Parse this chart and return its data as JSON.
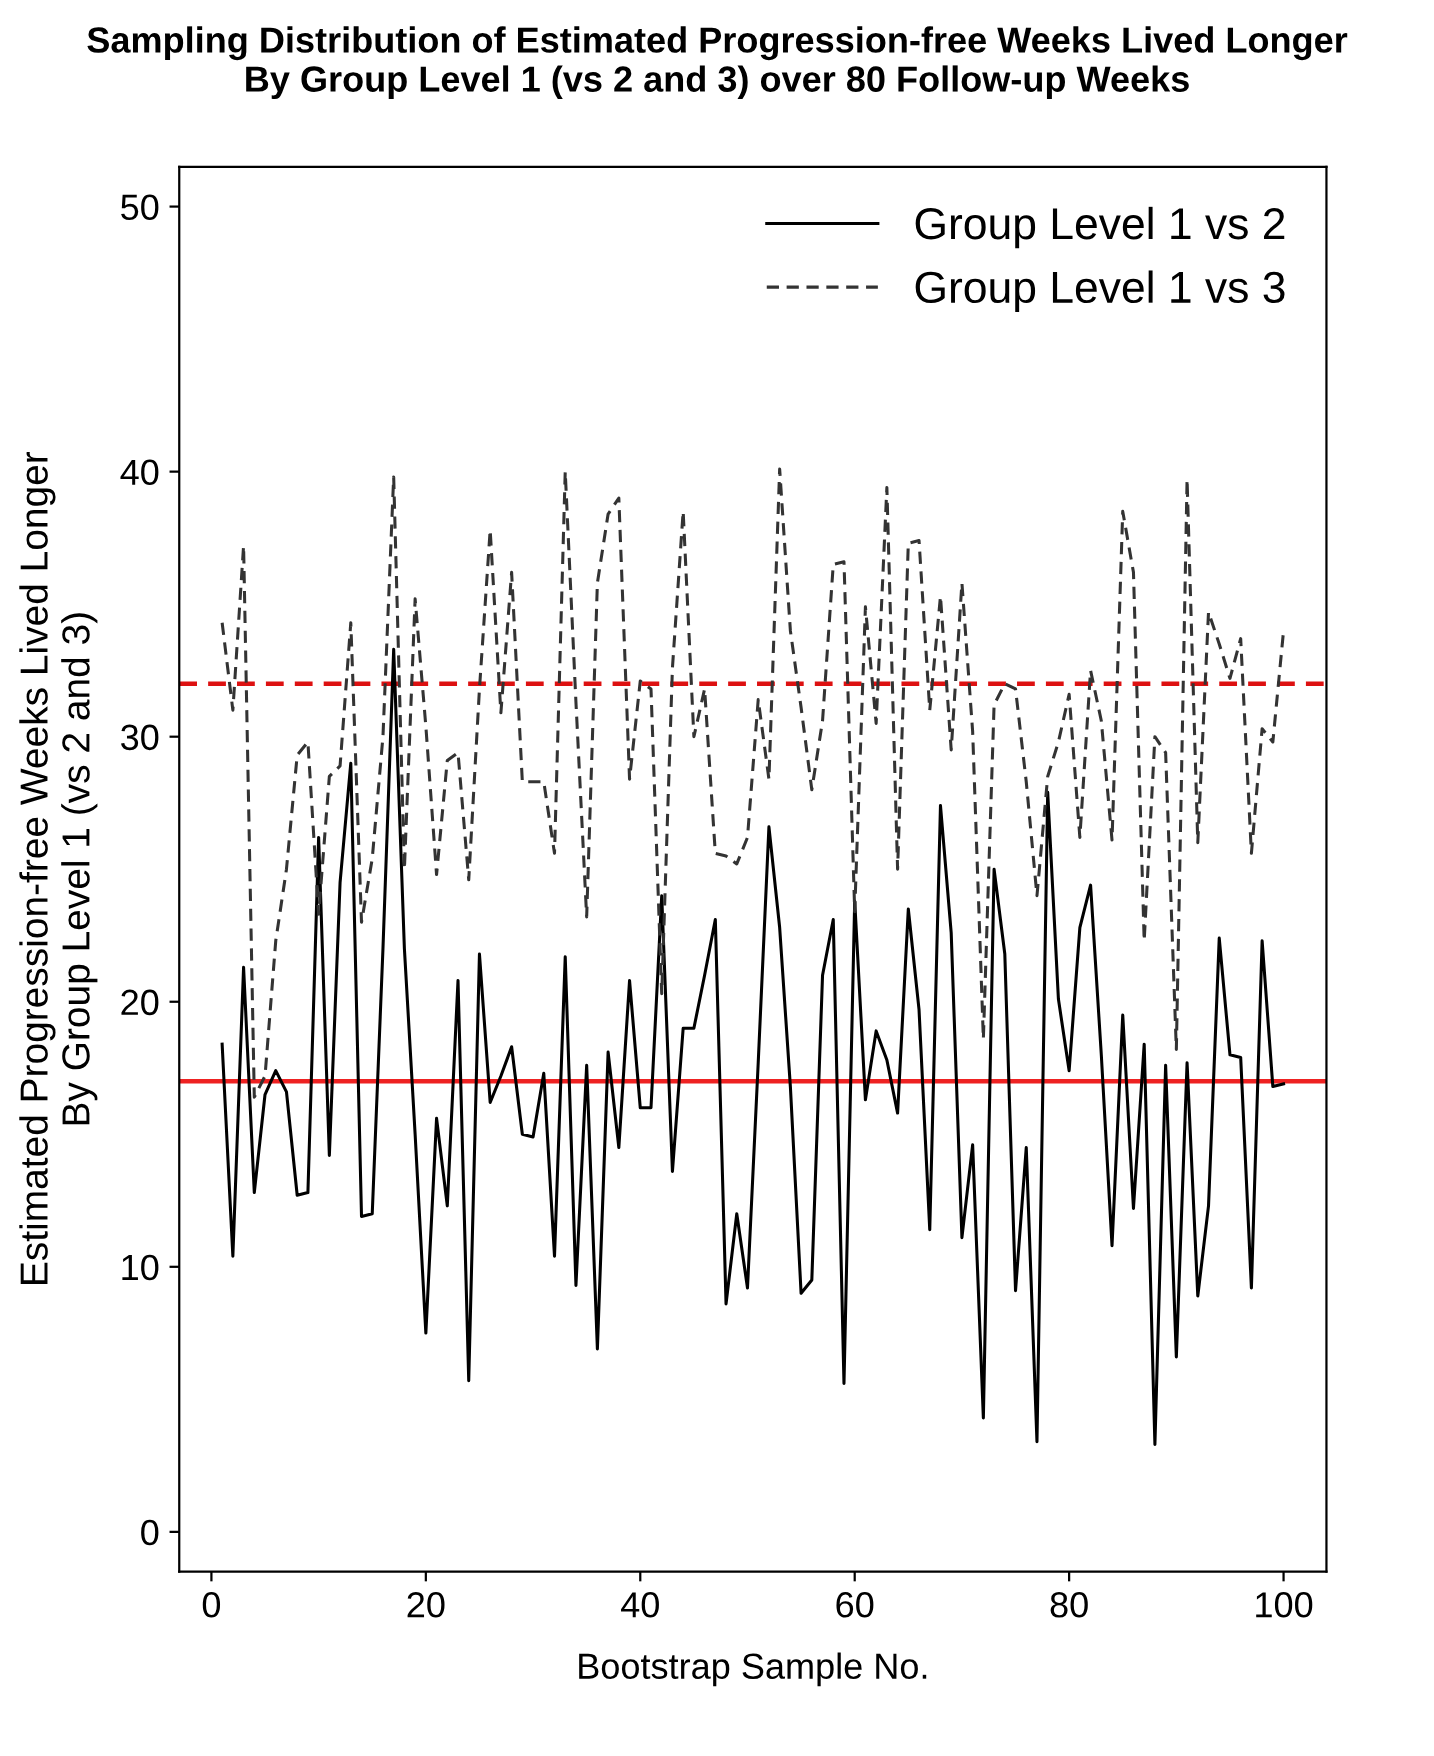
{
  "chart_data": {
    "type": "line",
    "title": "Sampling Distribution of Estimated Progression-free Weeks Lived Longer\nBy Group Level 1 (vs 2 and 3) over 80 Follow-up Weeks",
    "xlabel": "Bootstrap Sample No.",
    "ylabel": "Estimated Progression-free Weeks Lived Longer\nBy Group Level 1 (vs 2 and 3)",
    "x": [
      1,
      2,
      3,
      4,
      5,
      6,
      7,
      8,
      9,
      10,
      11,
      12,
      13,
      14,
      15,
      16,
      17,
      18,
      19,
      20,
      21,
      22,
      23,
      24,
      25,
      26,
      27,
      28,
      29,
      30,
      31,
      32,
      33,
      34,
      35,
      36,
      37,
      38,
      39,
      40,
      41,
      42,
      43,
      44,
      45,
      46,
      47,
      48,
      49,
      50,
      51,
      52,
      53,
      54,
      55,
      56,
      57,
      58,
      59,
      60,
      61,
      62,
      63,
      64,
      65,
      66,
      67,
      68,
      69,
      70,
      71,
      72,
      73,
      74,
      75,
      76,
      77,
      78,
      79,
      80,
      81,
      82,
      83,
      84,
      85,
      86,
      87,
      88,
      89,
      90,
      91,
      92,
      93,
      94,
      95,
      96,
      97,
      98,
      99,
      100
    ],
    "series": [
      {
        "name": "Group Level 1 vs 2",
        "color": "#000000",
        "line_style": "solid",
        "values": [
          18.4,
          10.4,
          21.3,
          12.8,
          16.5,
          17.4,
          16.6,
          12.7,
          12.8,
          26.2,
          14.2,
          24.5,
          29.0,
          11.9,
          12.0,
          22.0,
          33.3,
          22.0,
          15.0,
          7.5,
          15.6,
          12.3,
          20.8,
          5.7,
          21.8,
          16.2,
          17.2,
          18.3,
          15.0,
          14.9,
          17.3,
          10.4,
          21.7,
          9.3,
          17.6,
          6.9,
          18.1,
          14.5,
          20.8,
          16.0,
          16.0,
          24.0,
          13.6,
          19.0,
          19.0,
          21.0,
          23.1,
          8.6,
          12.0,
          9.2,
          17.7,
          26.6,
          22.8,
          16.8,
          9.0,
          9.5,
          21.0,
          23.1,
          5.6,
          23.8,
          16.3,
          18.9,
          17.8,
          15.8,
          23.5,
          19.7,
          11.4,
          27.4,
          22.6,
          11.1,
          14.6,
          4.3,
          25.0,
          21.8,
          9.1,
          14.5,
          3.4,
          27.9,
          20.1,
          17.4,
          22.8,
          24.4,
          18.0,
          10.8,
          19.5,
          12.2,
          18.4,
          3.3,
          17.6,
          6.6,
          17.7,
          8.9,
          12.3,
          22.4,
          18.0,
          17.9,
          9.2,
          22.3,
          16.8,
          16.9
        ]
      },
      {
        "name": "Group Level 1 vs 3",
        "color": "#333333",
        "line_style": "dashed",
        "values": [
          34.3,
          31.0,
          37.2,
          16.4,
          17.2,
          22.3,
          25.0,
          29.3,
          29.8,
          23.3,
          28.5,
          28.9,
          34.3,
          23.0,
          25.4,
          30.0,
          39.8,
          25.0,
          35.2,
          30.4,
          24.8,
          29.1,
          29.4,
          24.6,
          31.8,
          37.8,
          30.9,
          36.2,
          28.3,
          28.3,
          28.3,
          25.6,
          40.0,
          31.3,
          23.2,
          35.8,
          38.4,
          39.0,
          28.4,
          32.1,
          31.8,
          20.3,
          32.6,
          38.5,
          30.0,
          31.8,
          25.6,
          25.5,
          25.2,
          26.2,
          31.4,
          28.4,
          40.1,
          34.0,
          31.1,
          28.0,
          30.6,
          36.5,
          36.6,
          23.4,
          34.9,
          30.5,
          39.4,
          25.0,
          37.3,
          37.4,
          31.0,
          35.3,
          29.5,
          35.8,
          30.2,
          18.6,
          31.2,
          32.0,
          31.8,
          28.3,
          24.0,
          28.5,
          29.8,
          31.6,
          26.2,
          32.5,
          30.6,
          26.1,
          38.5,
          36.2,
          22.3,
          30.0,
          29.4,
          18.2,
          39.7,
          26.0,
          34.7,
          33.5,
          32.2,
          33.7,
          25.6,
          30.3,
          29.8,
          34.0
        ]
      }
    ],
    "ref_lines": [
      {
        "axis": "y",
        "value": 32,
        "color": "#dd1111",
        "line_style": "dashed"
      },
      {
        "axis": "y",
        "value": 17,
        "color": "#ee2222",
        "line_style": "solid"
      }
    ],
    "xlim": [
      -3,
      104
    ],
    "xticks": [
      0,
      20,
      40,
      60,
      80,
      100
    ],
    "ylim": [
      -1.5,
      51.5
    ],
    "yticks": [
      0,
      10,
      20,
      30,
      40,
      50
    ],
    "grid": false,
    "legend": "top right"
  }
}
